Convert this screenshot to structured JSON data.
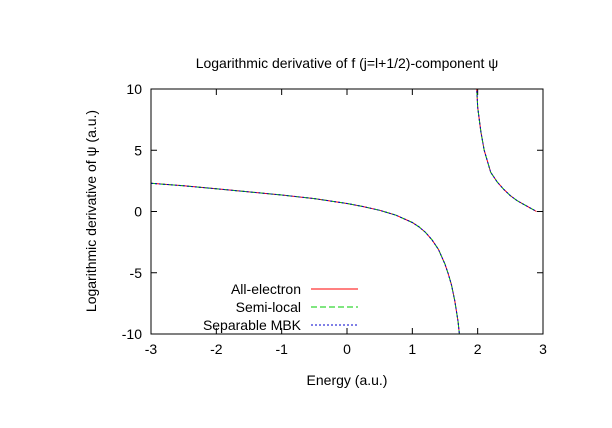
{
  "chart_data": {
    "type": "line",
    "title": "Logarithmic derivative of f (j=l+1/2)-component ψ",
    "xlabel": "Energy (a.u.)",
    "ylabel": "Logarithmic derivative of ψ (a.u.)",
    "xlim": [
      -3,
      3
    ],
    "ylim": [
      -10,
      10
    ],
    "xticks": [
      "-3",
      "-2",
      "-1",
      "0",
      "1",
      "2",
      "3"
    ],
    "yticks": [
      "-10",
      "-5",
      "0",
      "5",
      "10"
    ],
    "grid": false,
    "legend_position": "bottom-left",
    "series": [
      {
        "name": "All-electron",
        "color": "#ff0000",
        "dash": "solid",
        "x": [
          -3.0,
          -2.5,
          -2.0,
          -1.5,
          -1.0,
          -0.5,
          0.0,
          0.25,
          0.5,
          0.75,
          1.0,
          1.1,
          1.2,
          1.3,
          1.4,
          1.5,
          1.55,
          1.6,
          1.65,
          1.7,
          1.73,
          1.76,
          1.98,
          2.0,
          2.05,
          2.1,
          2.2,
          2.3,
          2.4,
          2.5,
          2.6,
          2.7,
          2.8,
          2.9
        ],
        "y": [
          2.3,
          2.1,
          1.85,
          1.6,
          1.35,
          1.05,
          0.65,
          0.4,
          0.1,
          -0.3,
          -0.9,
          -1.25,
          -1.7,
          -2.3,
          -3.1,
          -4.3,
          -5.1,
          -6.0,
          -7.3,
          -9.0,
          -10.5,
          -12.0,
          10.5,
          8.5,
          6.5,
          5.0,
          3.2,
          2.4,
          1.8,
          1.3,
          0.9,
          0.6,
          0.3,
          0.0
        ]
      },
      {
        "name": "Semi-local",
        "color": "#00cc00",
        "dash": "6 3",
        "x": [
          -3.0,
          -2.5,
          -2.0,
          -1.5,
          -1.0,
          -0.5,
          0.0,
          0.25,
          0.5,
          0.75,
          1.0,
          1.1,
          1.2,
          1.3,
          1.4,
          1.5,
          1.55,
          1.6,
          1.65,
          1.7,
          1.73,
          1.76,
          1.98,
          2.0,
          2.05,
          2.1,
          2.2,
          2.3,
          2.4,
          2.5,
          2.6,
          2.7,
          2.8,
          2.9
        ],
        "y": [
          2.3,
          2.1,
          1.85,
          1.6,
          1.35,
          1.05,
          0.65,
          0.4,
          0.1,
          -0.3,
          -0.9,
          -1.25,
          -1.7,
          -2.3,
          -3.1,
          -4.3,
          -5.1,
          -6.0,
          -7.3,
          -9.0,
          -10.5,
          -12.0,
          10.5,
          8.5,
          6.5,
          5.0,
          3.2,
          2.4,
          1.8,
          1.3,
          0.9,
          0.6,
          0.3,
          0.0
        ]
      },
      {
        "name": "Separable MBK",
        "color": "#0000cc",
        "dash": "2 2",
        "x": [
          -3.0,
          -2.5,
          -2.0,
          -1.5,
          -1.0,
          -0.5,
          0.0,
          0.25,
          0.5,
          0.75,
          1.0,
          1.1,
          1.2,
          1.3,
          1.4,
          1.5,
          1.55,
          1.6,
          1.65,
          1.7,
          1.73,
          1.76,
          1.98,
          2.0,
          2.05,
          2.1,
          2.2,
          2.3,
          2.4,
          2.5,
          2.6,
          2.7,
          2.8,
          2.9
        ],
        "y": [
          2.3,
          2.1,
          1.85,
          1.6,
          1.35,
          1.05,
          0.65,
          0.4,
          0.1,
          -0.3,
          -0.9,
          -1.25,
          -1.7,
          -2.3,
          -3.1,
          -4.3,
          -5.1,
          -6.0,
          -7.3,
          -9.0,
          -10.5,
          -12.0,
          10.5,
          8.5,
          6.5,
          5.0,
          3.2,
          2.4,
          1.8,
          1.3,
          0.9,
          0.6,
          0.3,
          0.0
        ]
      }
    ]
  }
}
